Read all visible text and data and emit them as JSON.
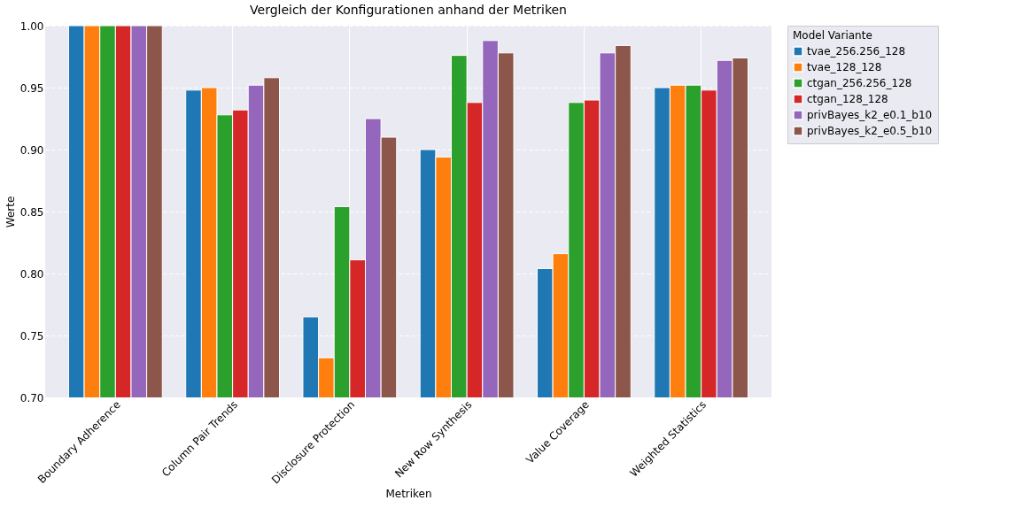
{
  "chart_data": {
    "type": "bar",
    "title": "Vergleich der Konfigurationen anhand der Metriken",
    "xlabel": "Metriken",
    "ylabel": "Werte",
    "legend_title": "Model Variante",
    "categories": [
      "Boundary Adherence",
      "Column Pair Trends",
      "Disclosure Protection",
      "New Row Synthesis",
      "Value Coverage",
      "Weighted Statistics"
    ],
    "series": [
      {
        "name": "tvae_256.256_128",
        "color": "#1f77b4",
        "values": [
          1.0,
          0.948,
          0.765,
          0.9,
          0.804,
          0.95
        ]
      },
      {
        "name": "tvae_128_128",
        "color": "#ff7f0e",
        "values": [
          1.0,
          0.95,
          0.732,
          0.894,
          0.816,
          0.952
        ]
      },
      {
        "name": "ctgan_256.256_128",
        "color": "#2ca02c",
        "values": [
          1.0,
          0.928,
          0.854,
          0.976,
          0.938,
          0.952
        ]
      },
      {
        "name": "ctgan_128_128",
        "color": "#d62728",
        "values": [
          1.0,
          0.932,
          0.811,
          0.938,
          0.94,
          0.948
        ]
      },
      {
        "name": "privBayes_k2_e0.1_b10",
        "color": "#9467bd",
        "values": [
          1.0,
          0.952,
          0.925,
          0.988,
          0.978,
          0.972
        ]
      },
      {
        "name": "privBayes_k2_e0.5_b10",
        "color": "#8c564b",
        "values": [
          1.0,
          0.958,
          0.91,
          0.978,
          0.984,
          0.974
        ]
      }
    ],
    "ylim": [
      0.7,
      1.0
    ],
    "yticks": [
      {
        "value": 0.7,
        "label": "0.70"
      },
      {
        "value": 0.75,
        "label": "0.75"
      },
      {
        "value": 0.8,
        "label": "0.80"
      },
      {
        "value": 0.85,
        "label": "0.85"
      },
      {
        "value": 0.9,
        "label": "0.90"
      },
      {
        "value": 0.95,
        "label": "0.95"
      },
      {
        "value": 1.0,
        "label": "1.00"
      }
    ],
    "grid": true,
    "legend": "top right"
  }
}
